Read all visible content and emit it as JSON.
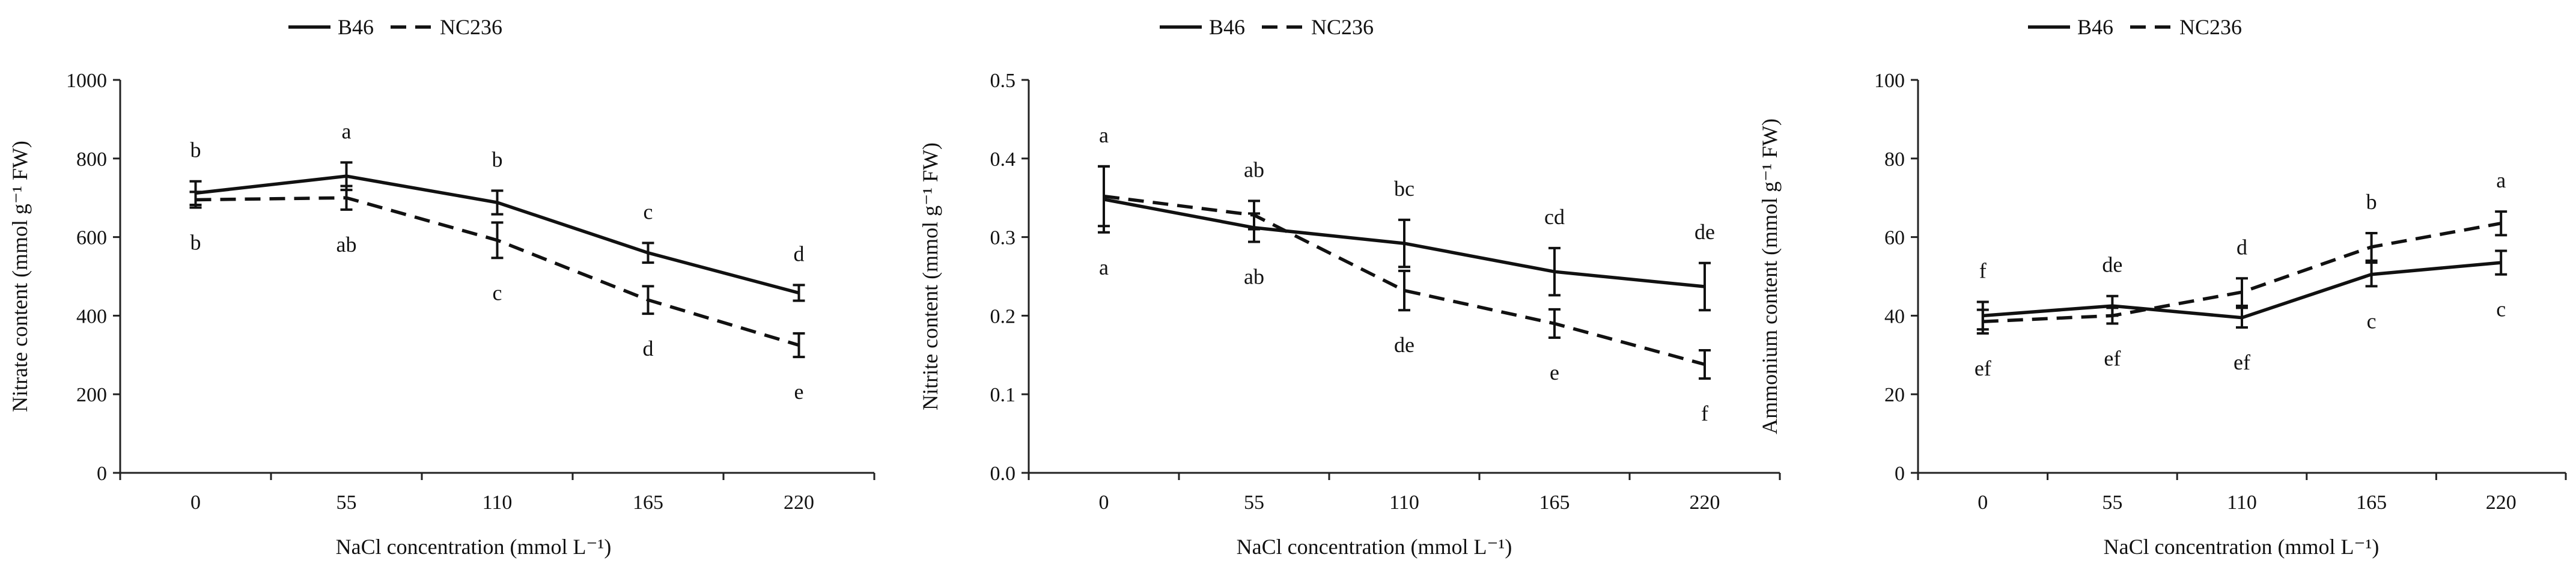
{
  "chart_data": [
    {
      "type": "line",
      "title": "",
      "xlabel": "NaCl concentration (mmol L⁻¹)",
      "ylabel": "Nitrate content (mmol g⁻¹ FW)",
      "categories": [
        "0",
        "55",
        "110",
        "165",
        "220"
      ],
      "ylim": [
        0,
        1000
      ],
      "yticks": [
        0,
        200,
        400,
        600,
        800,
        1000
      ],
      "ytick_labels": [
        "0",
        "200",
        "400",
        "600",
        "800",
        "1000"
      ],
      "legend": {
        "position": "top-left",
        "entries": [
          "B46",
          "NC236"
        ]
      },
      "series": [
        {
          "name": "B46",
          "style": "solid",
          "values": [
            712,
            755,
            688,
            560,
            458
          ],
          "errors": [
            30,
            35,
            30,
            25,
            20
          ],
          "letters": [
            "b",
            "a",
            "b",
            "c",
            "d"
          ]
        },
        {
          "name": "NC236",
          "style": "dashed",
          "values": [
            695,
            700,
            592,
            440,
            325
          ],
          "errors": [
            20,
            30,
            45,
            35,
            30
          ],
          "letters": [
            "b",
            "ab",
            "c",
            "d",
            "e"
          ]
        }
      ]
    },
    {
      "type": "line",
      "title": "",
      "xlabel": "NaCl concentration (mmol L⁻¹)",
      "ylabel": "Nitrite content (mmol g⁻¹ FW)",
      "categories": [
        "0",
        "55",
        "110",
        "165",
        "220"
      ],
      "ylim": [
        0,
        0.5
      ],
      "yticks": [
        0,
        0.1,
        0.2,
        0.3,
        0.4,
        0.5
      ],
      "ytick_labels": [
        "0.0",
        "0.1",
        "0.2",
        "0.3",
        "0.4",
        "0.5"
      ],
      "legend": {
        "position": "top-left",
        "entries": [
          "B46",
          "NC236"
        ]
      },
      "series": [
        {
          "name": "B46",
          "style": "solid",
          "values": [
            0.348,
            0.312,
            0.292,
            0.256,
            0.237
          ],
          "errors": [
            0.042,
            0.018,
            0.03,
            0.03,
            0.03
          ],
          "letters": [
            "a",
            "ab",
            "bc",
            "cd",
            "de"
          ]
        },
        {
          "name": "NC236",
          "style": "dashed",
          "values": [
            0.352,
            0.328,
            0.232,
            0.19,
            0.138
          ],
          "errors": [
            0.038,
            0.018,
            0.025,
            0.018,
            0.018
          ],
          "letters": [
            "a",
            "ab",
            "de",
            "e",
            "f"
          ]
        }
      ]
    },
    {
      "type": "line",
      "title": "",
      "xlabel": "NaCl concentration (mmol L⁻¹)",
      "ylabel": "Ammonium content (mmol g⁻¹ FW)",
      "categories": [
        "0",
        "55",
        "110",
        "165",
        "220"
      ],
      "ylim": [
        0,
        100
      ],
      "yticks": [
        0,
        20,
        40,
        60,
        80,
        100
      ],
      "ytick_labels": [
        "0",
        "20",
        "40",
        "60",
        "80",
        "100"
      ],
      "legend": {
        "position": "top-left",
        "entries": [
          "B46",
          "NC236"
        ]
      },
      "series": [
        {
          "name": "B46",
          "style": "solid",
          "values": [
            40,
            42.5,
            39.5,
            50.5,
            53.5
          ],
          "errors": [
            3.5,
            2.5,
            2.5,
            3,
            3
          ],
          "letters": [
            "f",
            "de",
            "ef",
            "c",
            "c"
          ]
        },
        {
          "name": "NC236",
          "style": "dashed",
          "values": [
            38.5,
            40,
            46,
            57.5,
            63.5
          ],
          "errors": [
            3,
            2,
            3.5,
            3.5,
            3
          ],
          "letters": [
            "ef",
            "ef",
            "d",
            "b",
            "a"
          ]
        }
      ]
    }
  ]
}
